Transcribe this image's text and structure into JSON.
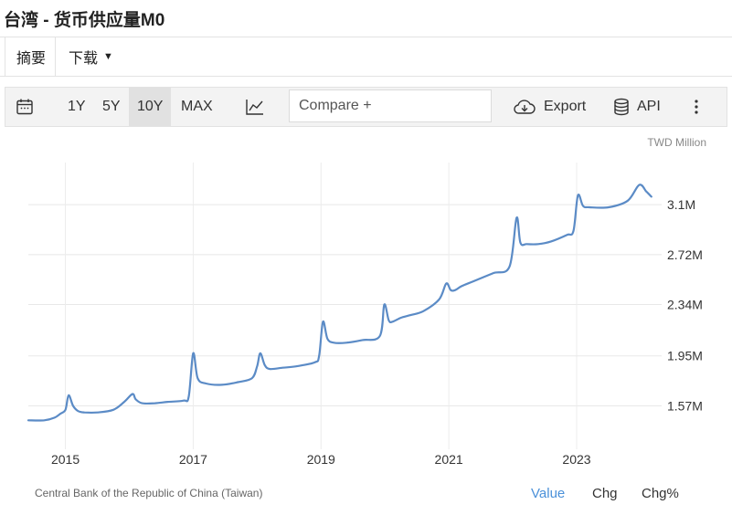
{
  "header": {
    "title": "台湾 - 货币供应量M0"
  },
  "tabs": [
    {
      "label": "摘要"
    },
    {
      "label": "下载"
    }
  ],
  "toolbar": {
    "ranges": [
      "1Y",
      "5Y",
      "10Y",
      "MAX"
    ],
    "active_range": "10Y",
    "compare_placeholder": "Compare +",
    "export_label": "Export",
    "api_label": "API"
  },
  "chart_data": {
    "type": "line",
    "unit_label": "TWD Million",
    "x_ticks": [
      "2015",
      "2017",
      "2019",
      "2021",
      "2023"
    ],
    "y_ticks": [
      "1.57M",
      "1.95M",
      "2.34M",
      "2.72M",
      "3.1M"
    ],
    "x": [
      2014.42,
      2014.67,
      2014.83,
      2014.92,
      2015.0,
      2015.05,
      2015.12,
      2015.2,
      2015.3,
      2015.5,
      2015.75,
      2015.92,
      2016.05,
      2016.1,
      2016.2,
      2016.4,
      2016.6,
      2016.85,
      2016.93,
      2017.0,
      2017.07,
      2017.2,
      2017.45,
      2017.7,
      2017.92,
      2018.0,
      2018.05,
      2018.12,
      2018.2,
      2018.4,
      2018.6,
      2018.9,
      2018.97,
      2019.03,
      2019.1,
      2019.2,
      2019.4,
      2019.65,
      2019.92,
      2019.99,
      2020.06,
      2020.12,
      2020.25,
      2020.4,
      2020.6,
      2020.85,
      2020.96,
      2021.03,
      2021.1,
      2021.2,
      2021.4,
      2021.7,
      2021.95,
      2022.06,
      2022.12,
      2022.22,
      2022.4,
      2022.6,
      2022.85,
      2022.95,
      2023.02,
      2023.1,
      2023.2,
      2023.5,
      2023.8,
      2023.98,
      2024.09,
      2024.17
    ],
    "y": [
      1.46,
      1.46,
      1.48,
      1.51,
      1.54,
      1.65,
      1.57,
      1.53,
      1.52,
      1.52,
      1.54,
      1.6,
      1.66,
      1.62,
      1.59,
      1.59,
      1.6,
      1.61,
      1.64,
      1.97,
      1.78,
      1.74,
      1.73,
      1.75,
      1.78,
      1.87,
      1.97,
      1.88,
      1.85,
      1.86,
      1.87,
      1.9,
      1.95,
      2.21,
      2.08,
      2.05,
      2.05,
      2.07,
      2.1,
      2.34,
      2.22,
      2.21,
      2.24,
      2.26,
      2.29,
      2.38,
      2.5,
      2.45,
      2.45,
      2.48,
      2.52,
      2.58,
      2.63,
      3.0,
      2.81,
      2.8,
      2.8,
      2.82,
      2.87,
      2.9,
      3.17,
      3.09,
      3.08,
      3.08,
      3.13,
      3.25,
      3.2,
      3.16
    ],
    "ylim": [
      1.24,
      3.42
    ],
    "y_tick_values": [
      1.57,
      1.95,
      2.34,
      2.72,
      3.1
    ],
    "source": "Central Bank of the Republic of China (Taiwan)",
    "grid": true,
    "color": "#5b8bc6"
  },
  "footer": {
    "tabs": [
      "Value",
      "Chg",
      "Chg%"
    ],
    "active_tab": "Value"
  }
}
